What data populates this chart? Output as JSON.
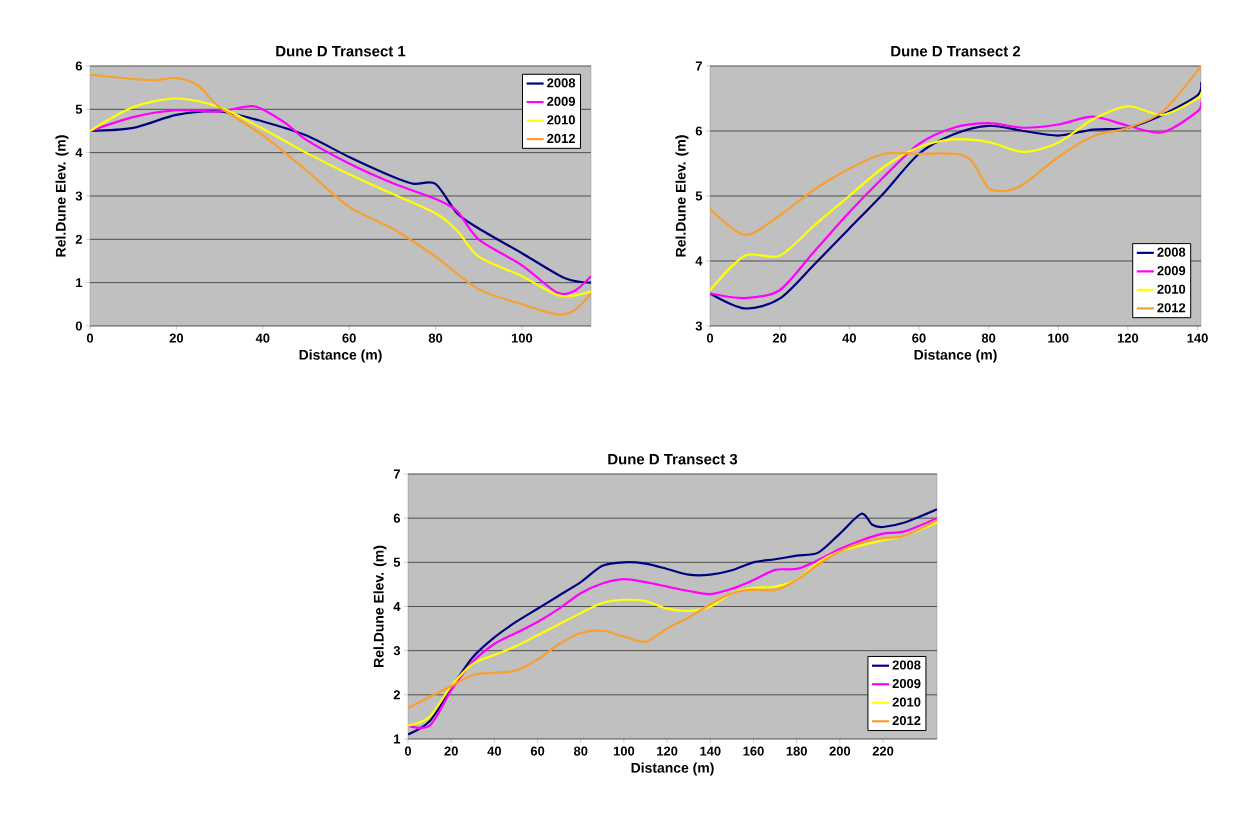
{
  "chart_data": [
    {
      "type": "line",
      "title": "Dune D Transect 1",
      "xlabel": "Distance (m)",
      "ylabel": "Rel.Dune Elev. (m)",
      "xlim": [
        0,
        116
      ],
      "xticks": [
        0,
        20,
        40,
        60,
        80,
        100
      ],
      "ylim": [
        0,
        6
      ],
      "yticks": [
        0,
        1,
        2,
        3,
        4,
        5,
        6
      ],
      "grid": "y",
      "legend": "top right",
      "series": [
        {
          "name": "2008",
          "color": "#000080",
          "x": [
            0,
            10,
            20,
            30,
            40,
            50,
            60,
            70,
            75,
            80,
            85,
            90,
            100,
            110,
            116
          ],
          "values": [
            4.5,
            4.57,
            4.87,
            4.95,
            4.72,
            4.4,
            3.9,
            3.45,
            3.28,
            3.28,
            2.6,
            2.25,
            1.68,
            1.1,
            1.0
          ]
        },
        {
          "name": "2009",
          "color": "#ff00ff",
          "x": [
            0,
            10,
            20,
            30,
            38,
            45,
            50,
            60,
            70,
            80,
            85,
            90,
            100,
            108,
            112,
            116
          ],
          "values": [
            4.5,
            4.82,
            4.98,
            4.95,
            5.07,
            4.7,
            4.3,
            3.75,
            3.3,
            2.93,
            2.65,
            2.0,
            1.4,
            0.78,
            0.8,
            1.15
          ]
        },
        {
          "name": "2010",
          "color": "#ffff00",
          "x": [
            0,
            10,
            20,
            30,
            40,
            50,
            60,
            70,
            80,
            85,
            90,
            100,
            108,
            112,
            116
          ],
          "values": [
            4.5,
            5.05,
            5.25,
            5.05,
            4.55,
            4.0,
            3.5,
            3.05,
            2.6,
            2.2,
            1.6,
            1.15,
            0.72,
            0.7,
            0.8
          ]
        },
        {
          "name": "2012",
          "color": "#f7a030",
          "x": [
            0,
            10,
            15,
            20,
            25,
            30,
            40,
            50,
            60,
            70,
            80,
            90,
            100,
            108,
            112,
            116
          ],
          "values": [
            5.8,
            5.7,
            5.67,
            5.72,
            5.55,
            5.05,
            4.4,
            3.6,
            2.75,
            2.25,
            1.6,
            0.85,
            0.5,
            0.27,
            0.35,
            0.75
          ]
        }
      ]
    },
    {
      "type": "line",
      "title": "Dune D Transect 2",
      "xlabel": "Distance (m)",
      "ylabel": "Rel.Dune Elev. (m)",
      "xlim": [
        0,
        141
      ],
      "xticks": [
        0,
        20,
        40,
        60,
        80,
        100,
        120,
        140
      ],
      "ylim": [
        3,
        7
      ],
      "yticks": [
        3,
        4,
        5,
        6,
        7
      ],
      "grid": "y",
      "legend": "bottom right",
      "series": [
        {
          "name": "2008",
          "color": "#000080",
          "x": [
            0,
            10,
            20,
            30,
            40,
            50,
            60,
            70,
            80,
            90,
            100,
            110,
            120,
            130,
            140,
            141
          ],
          "values": [
            3.5,
            3.27,
            3.42,
            3.95,
            4.5,
            5.05,
            5.65,
            5.95,
            6.08,
            6.0,
            5.93,
            6.02,
            6.05,
            6.25,
            6.55,
            6.75
          ]
        },
        {
          "name": "2009",
          "color": "#ff00ff",
          "x": [
            0,
            10,
            20,
            30,
            40,
            50,
            60,
            70,
            80,
            90,
            100,
            110,
            120,
            130,
            140,
            141
          ],
          "values": [
            3.5,
            3.43,
            3.55,
            4.15,
            4.75,
            5.3,
            5.8,
            6.05,
            6.12,
            6.05,
            6.1,
            6.22,
            6.08,
            5.98,
            6.3,
            6.45
          ]
        },
        {
          "name": "2010",
          "color": "#ffff00",
          "x": [
            0,
            10,
            20,
            30,
            40,
            50,
            60,
            70,
            80,
            90,
            100,
            110,
            120,
            130,
            140,
            141
          ],
          "values": [
            3.55,
            4.08,
            4.08,
            4.55,
            5.0,
            5.45,
            5.75,
            5.87,
            5.83,
            5.68,
            5.82,
            6.18,
            6.38,
            6.25,
            6.5,
            6.6
          ]
        },
        {
          "name": "2012",
          "color": "#f7a030",
          "x": [
            0,
            10,
            20,
            30,
            40,
            50,
            60,
            70,
            75,
            80,
            85,
            90,
            100,
            110,
            120,
            130,
            141
          ],
          "values": [
            4.8,
            4.4,
            4.7,
            5.1,
            5.42,
            5.65,
            5.65,
            5.65,
            5.55,
            5.12,
            5.08,
            5.18,
            5.6,
            5.92,
            6.05,
            6.3,
            7.0
          ]
        }
      ]
    },
    {
      "type": "line",
      "title": "Dune D Transect 3",
      "xlabel": "Distance (m)",
      "ylabel": "Rel.Dune Elev. (m)",
      "xlim": [
        0,
        245
      ],
      "xticks": [
        0,
        20,
        40,
        60,
        80,
        100,
        120,
        140,
        160,
        180,
        200,
        220
      ],
      "ylim": [
        1,
        7
      ],
      "yticks": [
        1,
        2,
        3,
        4,
        5,
        6,
        7
      ],
      "grid": "y",
      "legend": "bottom right",
      "series": [
        {
          "name": "2008",
          "color": "#000080",
          "x": [
            0,
            10,
            20,
            30,
            40,
            50,
            60,
            70,
            80,
            90,
            100,
            110,
            120,
            130,
            140,
            150,
            160,
            170,
            180,
            190,
            200,
            210,
            215,
            220,
            230,
            245
          ],
          "values": [
            1.1,
            1.4,
            2.15,
            2.85,
            3.3,
            3.65,
            3.95,
            4.25,
            4.55,
            4.92,
            5.0,
            4.97,
            4.85,
            4.72,
            4.72,
            4.82,
            5.0,
            5.07,
            5.15,
            5.22,
            5.65,
            6.1,
            5.85,
            5.8,
            5.9,
            6.2
          ]
        },
        {
          "name": "2009",
          "color": "#ff00ff",
          "x": [
            0,
            10,
            20,
            30,
            40,
            50,
            60,
            70,
            80,
            90,
            100,
            110,
            120,
            130,
            140,
            150,
            160,
            170,
            180,
            190,
            200,
            210,
            220,
            230,
            245
          ],
          "values": [
            1.3,
            1.3,
            2.1,
            2.75,
            3.15,
            3.4,
            3.65,
            3.95,
            4.3,
            4.52,
            4.62,
            4.55,
            4.45,
            4.35,
            4.28,
            4.4,
            4.6,
            4.83,
            4.85,
            5.05,
            5.3,
            5.5,
            5.65,
            5.7,
            6.0
          ]
        },
        {
          "name": "2010",
          "color": "#ffff00",
          "x": [
            0,
            10,
            20,
            30,
            40,
            50,
            60,
            70,
            80,
            90,
            100,
            110,
            120,
            130,
            140,
            150,
            160,
            170,
            180,
            190,
            200,
            210,
            220,
            230,
            245
          ],
          "values": [
            1.3,
            1.5,
            2.2,
            2.7,
            2.9,
            3.1,
            3.35,
            3.6,
            3.85,
            4.08,
            4.15,
            4.12,
            3.95,
            3.9,
            4.0,
            4.3,
            4.42,
            4.45,
            4.6,
            5.0,
            5.25,
            5.38,
            5.5,
            5.6,
            5.9
          ]
        },
        {
          "name": "2012",
          "color": "#f7a030",
          "x": [
            0,
            10,
            20,
            30,
            40,
            50,
            60,
            70,
            80,
            90,
            100,
            110,
            120,
            130,
            140,
            150,
            160,
            170,
            180,
            190,
            200,
            210,
            220,
            230,
            245
          ],
          "values": [
            1.7,
            1.95,
            2.2,
            2.45,
            2.5,
            2.55,
            2.8,
            3.15,
            3.4,
            3.45,
            3.32,
            3.2,
            3.5,
            3.75,
            4.05,
            4.3,
            4.38,
            4.37,
            4.6,
            4.95,
            5.25,
            5.45,
            5.55,
            5.6,
            5.95
          ]
        }
      ]
    }
  ]
}
